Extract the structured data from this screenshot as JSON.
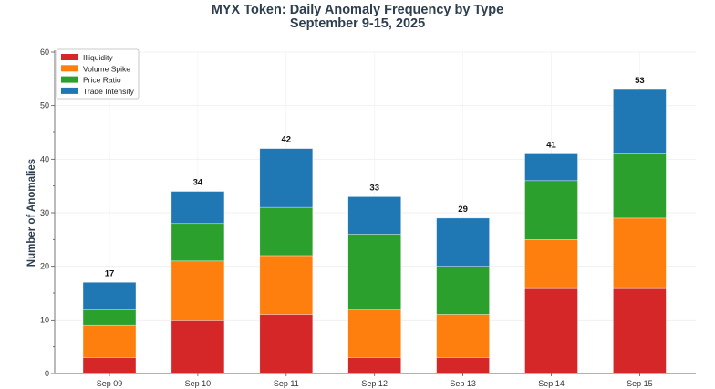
{
  "chart_data": {
    "type": "bar",
    "stacked": true,
    "title": "MYX Token: Daily Anomaly Frequency by Type",
    "subtitle": "September 9-15, 2025",
    "xlabel": "",
    "ylabel": "Number of Anomalies",
    "ylim": [
      0,
      60
    ],
    "yticks": [
      0,
      10,
      20,
      30,
      40,
      50,
      60
    ],
    "grid": true,
    "legend_position": "top-left",
    "categories": [
      "Sep 09",
      "Sep 10",
      "Sep 11",
      "Sep 12",
      "Sep 13",
      "Sep 14",
      "Sep 15"
    ],
    "series": [
      {
        "name": "Illiquidity",
        "color": "#d62728",
        "values": [
          3,
          10,
          11,
          3,
          3,
          16,
          16
        ]
      },
      {
        "name": "Volume Spike",
        "color": "#ff7f0e",
        "values": [
          6,
          11,
          11,
          9,
          8,
          9,
          13
        ]
      },
      {
        "name": "Price Ratio",
        "color": "#2ca02c",
        "values": [
          3,
          7,
          9,
          14,
          9,
          11,
          12
        ]
      },
      {
        "name": "Trade Intensity",
        "color": "#1f77b4",
        "values": [
          5,
          6,
          11,
          7,
          9,
          5,
          12
        ]
      }
    ],
    "totals": [
      17,
      34,
      42,
      33,
      29,
      41,
      53
    ]
  }
}
